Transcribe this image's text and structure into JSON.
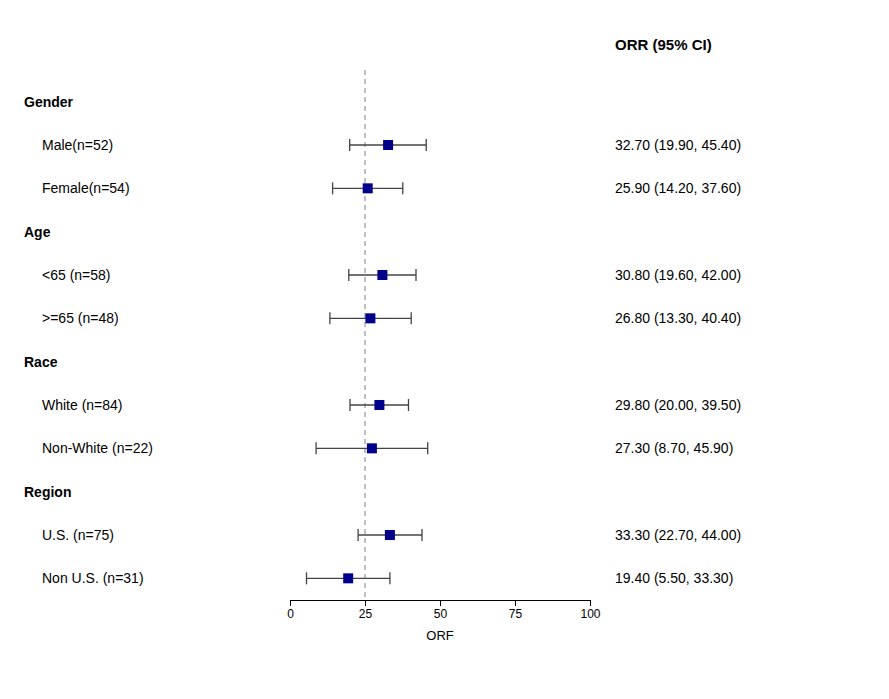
{
  "chart_data": {
    "type": "forest",
    "title": "ORR (95% CI)",
    "xlabel": "ORF",
    "categories": [
      "Gender",
      "Male(n=52)",
      "Female(n=54)",
      "Age",
      "<65 (n=58)",
      ">=65 (n=48)",
      "Race",
      "White (n=84)",
      "Non-White (n=22)",
      "Region",
      "U.S. (n=75)",
      "Non U.S. (n=31)"
    ],
    "values": [
      null,
      32.7,
      25.9,
      null,
      30.8,
      26.8,
      null,
      29.8,
      27.3,
      null,
      33.3,
      19.4
    ],
    "ci_low": [
      null,
      19.9,
      14.2,
      null,
      19.6,
      13.3,
      null,
      20.0,
      8.7,
      null,
      22.7,
      5.5
    ],
    "ci_high": [
      null,
      45.4,
      37.6,
      null,
      42.0,
      40.4,
      null,
      39.5,
      45.9,
      null,
      44.0,
      33.3
    ],
    "value_labels": [
      null,
      "32.70 (19.90, 45.40)",
      "25.90 (14.20, 37.60)",
      null,
      "30.80 (19.60, 42.00)",
      "26.80 (13.30, 40.40)",
      null,
      "29.80 (20.00, 39.50)",
      "27.30 (8.70, 45.90)",
      null,
      "33.30 (22.70, 44.00)",
      "19.40 (5.50, 33.30)"
    ],
    "data_labels": true,
    "reference_x": 25,
    "color": "#00008B",
    "xlim": [
      0,
      100
    ],
    "xticks": [
      0,
      25,
      50,
      75,
      100
    ],
    "grid": false
  }
}
